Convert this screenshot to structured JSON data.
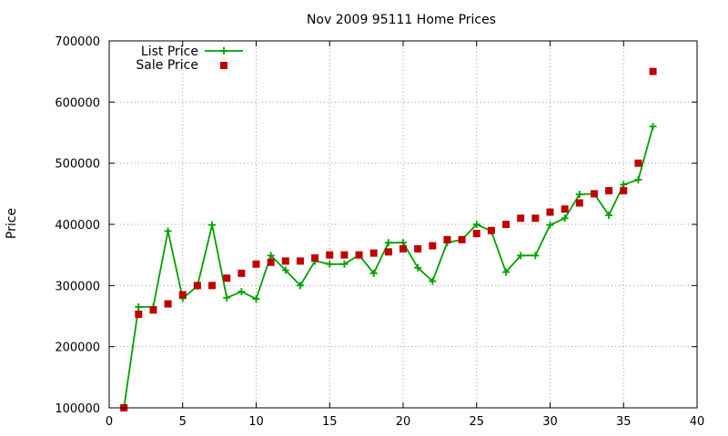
{
  "chart_data": {
    "type": "line",
    "title": "Nov 2009 95111 Home Prices",
    "xlabel": "",
    "ylabel": "Price",
    "xlim": [
      0,
      40
    ],
    "ylim": [
      100000,
      700000
    ],
    "xticks": [
      0,
      5,
      10,
      15,
      20,
      25,
      30,
      35,
      40
    ],
    "yticks": [
      100000,
      200000,
      300000,
      400000,
      500000,
      600000,
      700000
    ],
    "grid": true,
    "legend": "top-left",
    "series": [
      {
        "name": "List Price",
        "style": "line+cross",
        "color": "#00a000",
        "x": [
          1,
          2,
          3,
          4,
          5,
          6,
          7,
          8,
          9,
          10,
          11,
          12,
          13,
          14,
          15,
          16,
          17,
          18,
          19,
          20,
          21,
          22,
          23,
          24,
          25,
          26,
          27,
          28,
          29,
          30,
          31,
          32,
          33,
          34,
          35,
          36,
          37
        ],
        "y": [
          100000,
          265000,
          265000,
          389000,
          279000,
          299000,
          399000,
          280000,
          290000,
          278000,
          349000,
          325000,
          300000,
          340000,
          335000,
          335000,
          350000,
          320000,
          370000,
          370000,
          329000,
          307000,
          370000,
          375000,
          400000,
          389000,
          322000,
          349000,
          349000,
          399000,
          410000,
          449000,
          450000,
          415000,
          465000,
          473000,
          560000
        ]
      },
      {
        "name": "Sale Price",
        "style": "square",
        "color": "#c00000",
        "x": [
          1,
          2,
          3,
          4,
          5,
          6,
          7,
          8,
          9,
          10,
          11,
          12,
          13,
          14,
          15,
          16,
          17,
          18,
          19,
          20,
          21,
          22,
          23,
          24,
          25,
          26,
          27,
          28,
          29,
          30,
          31,
          32,
          33,
          34,
          35,
          36,
          37
        ],
        "y": [
          100000,
          253000,
          260000,
          270000,
          285000,
          300000,
          300000,
          312000,
          320000,
          335000,
          338000,
          340000,
          340000,
          345000,
          350000,
          350000,
          350000,
          353000,
          355000,
          360000,
          360000,
          365000,
          375000,
          375000,
          385000,
          390000,
          400000,
          410000,
          410000,
          420000,
          425000,
          435000,
          450000,
          455000,
          455000,
          500000,
          650000
        ]
      }
    ]
  }
}
